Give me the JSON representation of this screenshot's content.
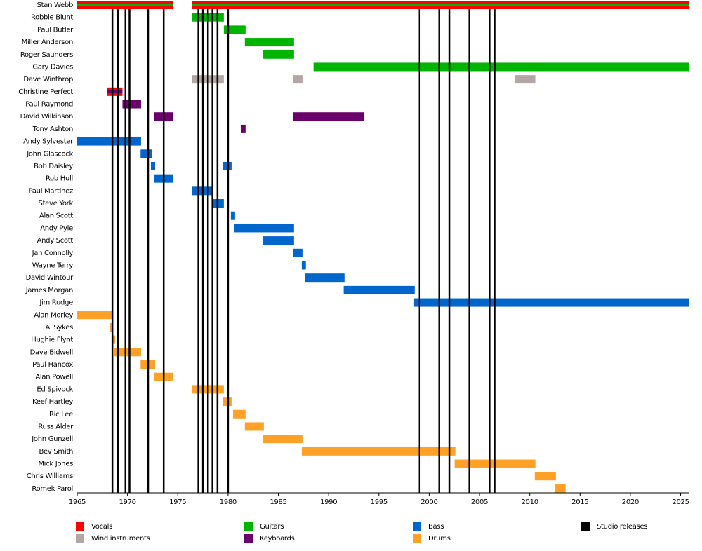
{
  "chart_data": {
    "type": "timeline",
    "xlim": [
      1965,
      2025.8
    ],
    "xticks": [
      1965,
      1970,
      1975,
      1980,
      1985,
      1990,
      1995,
      2000,
      2005,
      2010,
      2015,
      2020,
      2025
    ],
    "roles": [
      {
        "name": "Vocals",
        "color": "#ff0000"
      },
      {
        "name": "Wind instruments",
        "color": "#b5a6a6"
      },
      {
        "name": "Guitars",
        "color": "#00b400"
      },
      {
        "name": "Keyboards",
        "color": "#6b006b"
      },
      {
        "name": "Bass",
        "color": "#0066cc"
      },
      {
        "name": "Drums",
        "color": "#ffa126"
      },
      {
        "name": "Studio releases",
        "color": "#000000"
      }
    ],
    "releases": [
      1968.5,
      1969.05,
      1969.8,
      1970.2,
      1972.05,
      1973.6,
      1977.05,
      1977.5,
      1978,
      1978.45,
      1978.95,
      1980,
      1999.05,
      2001,
      2002,
      2004,
      2006,
      2006.5
    ],
    "members": [
      {
        "name": "Stan Webb",
        "spans": [
          {
            "roles": [
              "Vocals",
              "Guitars"
            ],
            "start": 1965,
            "end": 1974.56
          },
          {
            "roles": [
              "Vocals",
              "Guitars"
            ],
            "start": 1976.44,
            "end": 2025.8
          }
        ]
      },
      {
        "name": "Robbie Blunt",
        "spans": [
          {
            "roles": [
              "Guitars"
            ],
            "start": 1976.44,
            "end": 1979.58
          }
        ]
      },
      {
        "name": "Paul Butler",
        "spans": [
          {
            "roles": [
              "Guitars"
            ],
            "start": 1979.58,
            "end": 1981.74
          }
        ]
      },
      {
        "name": "Miller Anderson",
        "spans": [
          {
            "roles": [
              "Guitars"
            ],
            "start": 1981.67,
            "end": 1986.56
          }
        ]
      },
      {
        "name": "Roger Saunders",
        "spans": [
          {
            "roles": [
              "Guitars"
            ],
            "start": 1983.5,
            "end": 1986.56
          }
        ]
      },
      {
        "name": "Gary Davies",
        "spans": [
          {
            "roles": [
              "Guitars"
            ],
            "start": 1988.5,
            "end": 2025.8
          }
        ]
      },
      {
        "name": "Dave Winthrop",
        "spans": [
          {
            "roles": [
              "Wind instruments"
            ],
            "start": 1976.44,
            "end": 1979.58
          },
          {
            "roles": [
              "Wind instruments"
            ],
            "start": 1986.5,
            "end": 1987.4
          },
          {
            "roles": [
              "Wind instruments"
            ],
            "start": 2008.5,
            "end": 2010.55
          }
        ]
      },
      {
        "name": "Christine Perfect",
        "spans": [
          {
            "roles": [
              "Vocals",
              "Keyboards"
            ],
            "start": 1968,
            "end": 1969.5
          }
        ]
      },
      {
        "name": "Paul Raymond",
        "spans": [
          {
            "roles": [
              "Keyboards"
            ],
            "start": 1969.5,
            "end": 1971.35
          }
        ]
      },
      {
        "name": "David Wilkinson",
        "spans": [
          {
            "roles": [
              "Keyboards"
            ],
            "start": 1972.67,
            "end": 1974.56
          },
          {
            "roles": [
              "Keyboards"
            ],
            "start": 1986.5,
            "end": 1993.5
          }
        ]
      },
      {
        "name": "Tony Ashton",
        "spans": [
          {
            "roles": [
              "Keyboards"
            ],
            "start": 1981.33,
            "end": 1981.74
          }
        ]
      },
      {
        "name": "Andy Sylvester",
        "spans": [
          {
            "roles": [
              "Bass"
            ],
            "start": 1965,
            "end": 1971.35
          }
        ]
      },
      {
        "name": "John Glascock",
        "spans": [
          {
            "roles": [
              "Bass"
            ],
            "start": 1971.3,
            "end": 1972.4
          }
        ]
      },
      {
        "name": "Bob Daisley",
        "spans": [
          {
            "roles": [
              "Bass"
            ],
            "start": 1972.33,
            "end": 1972.75
          },
          {
            "roles": [
              "Bass"
            ],
            "start": 1979.5,
            "end": 1980.35
          }
        ]
      },
      {
        "name": "Rob Hull",
        "spans": [
          {
            "roles": [
              "Bass"
            ],
            "start": 1972.67,
            "end": 1974.56
          }
        ]
      },
      {
        "name": "Paul Martinez",
        "spans": [
          {
            "roles": [
              "Bass"
            ],
            "start": 1976.44,
            "end": 1978.53
          }
        ]
      },
      {
        "name": "Steve York",
        "spans": [
          {
            "roles": [
              "Bass"
            ],
            "start": 1978.53,
            "end": 1979.58
          }
        ]
      },
      {
        "name": "Alan Scott",
        "spans": [
          {
            "roles": [
              "Bass"
            ],
            "start": 1980.28,
            "end": 1980.7
          }
        ]
      },
      {
        "name": "Andy Pyle",
        "spans": [
          {
            "roles": [
              "Bass"
            ],
            "start": 1980.63,
            "end": 1986.56
          }
        ]
      },
      {
        "name": "Andy Scott",
        "spans": [
          {
            "roles": [
              "Bass"
            ],
            "start": 1983.5,
            "end": 1986.56
          }
        ]
      },
      {
        "name": "Jan Connolly",
        "spans": [
          {
            "roles": [
              "Bass"
            ],
            "start": 1986.5,
            "end": 1987.4
          }
        ]
      },
      {
        "name": "Wayne Terry",
        "spans": [
          {
            "roles": [
              "Bass"
            ],
            "start": 1987.33,
            "end": 1987.74
          }
        ]
      },
      {
        "name": "David Wintour",
        "spans": [
          {
            "roles": [
              "Bass"
            ],
            "start": 1987.67,
            "end": 1991.58
          }
        ]
      },
      {
        "name": "James Morgan",
        "spans": [
          {
            "roles": [
              "Bass"
            ],
            "start": 1991.5,
            "end": 1998.56
          }
        ]
      },
      {
        "name": "Jim Rudge",
        "spans": [
          {
            "roles": [
              "Bass"
            ],
            "start": 1998.5,
            "end": 2025.8
          }
        ]
      },
      {
        "name": "Alan Morley",
        "spans": [
          {
            "roles": [
              "Drums"
            ],
            "start": 1965,
            "end": 1968.42
          }
        ]
      },
      {
        "name": "Al Sykes",
        "spans": [
          {
            "roles": [
              "Drums"
            ],
            "start": 1968.28,
            "end": 1968.56
          }
        ]
      },
      {
        "name": "Hughie Flynt",
        "spans": [
          {
            "roles": [
              "Drums"
            ],
            "start": 1968.56,
            "end": 1968.77
          }
        ]
      },
      {
        "name": "Dave Bidwell",
        "spans": [
          {
            "roles": [
              "Drums"
            ],
            "start": 1968.7,
            "end": 1971.35
          }
        ]
      },
      {
        "name": "Paul Hancox",
        "spans": [
          {
            "roles": [
              "Drums"
            ],
            "start": 1971.3,
            "end": 1972.75
          }
        ]
      },
      {
        "name": "Alan Powell",
        "spans": [
          {
            "roles": [
              "Drums"
            ],
            "start": 1972.67,
            "end": 1974.56
          }
        ]
      },
      {
        "name": "Ed Spivock",
        "spans": [
          {
            "roles": [
              "Drums"
            ],
            "start": 1976.44,
            "end": 1979.58
          }
        ]
      },
      {
        "name": "Keef Hartley",
        "spans": [
          {
            "roles": [
              "Drums"
            ],
            "start": 1979.5,
            "end": 1980.35
          }
        ]
      },
      {
        "name": "Ric Lee",
        "spans": [
          {
            "roles": [
              "Drums"
            ],
            "start": 1980.5,
            "end": 1981.74
          }
        ]
      },
      {
        "name": "Russ Alder",
        "spans": [
          {
            "roles": [
              "Drums"
            ],
            "start": 1981.67,
            "end": 1983.56
          }
        ]
      },
      {
        "name": "John Gunzell",
        "spans": [
          {
            "roles": [
              "Drums"
            ],
            "start": 1983.5,
            "end": 1987.4
          }
        ]
      },
      {
        "name": "Bev Smith",
        "spans": [
          {
            "roles": [
              "Drums"
            ],
            "start": 1987.33,
            "end": 2002.6
          }
        ]
      },
      {
        "name": "Mick Jones",
        "spans": [
          {
            "roles": [
              "Drums"
            ],
            "start": 2002.53,
            "end": 2010.56
          }
        ]
      },
      {
        "name": "Chris Williams",
        "spans": [
          {
            "roles": [
              "Drums"
            ],
            "start": 2010.5,
            "end": 2012.6
          }
        ]
      },
      {
        "name": "Romek Parol",
        "spans": [
          {
            "roles": [
              "Drums"
            ],
            "start": 2012.5,
            "end": 2013.56
          }
        ]
      }
    ]
  }
}
